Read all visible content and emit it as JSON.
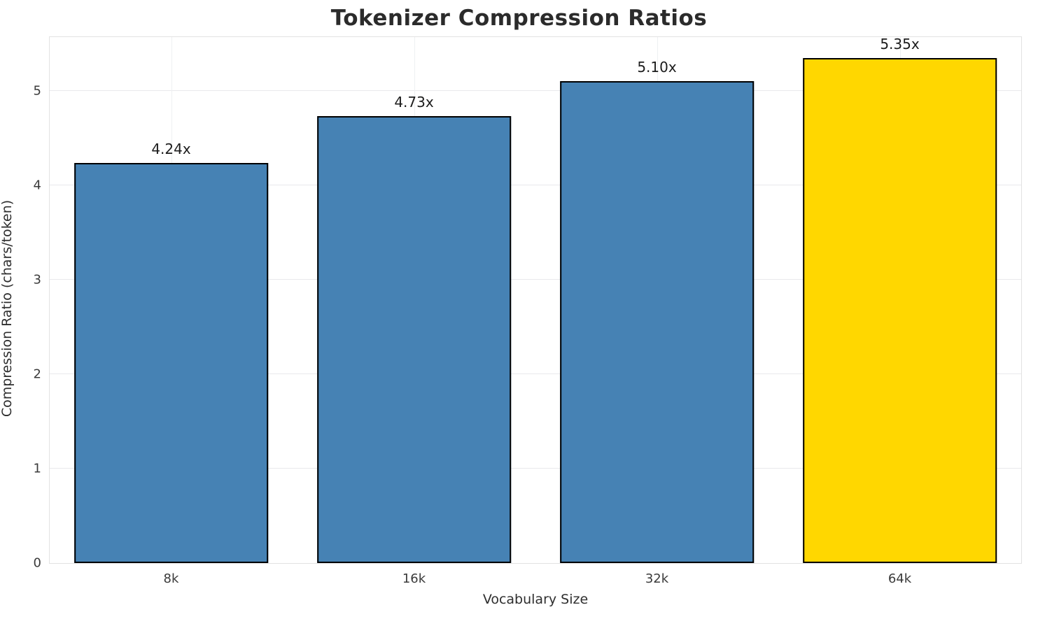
{
  "chart_data": {
    "type": "bar",
    "title": "Tokenizer Compression Ratios",
    "categories": [
      "8k",
      "16k",
      "32k",
      "64k"
    ],
    "values": [
      4.24,
      4.73,
      5.1,
      5.35
    ],
    "bar_labels": [
      "4.24x",
      "4.73x",
      "5.10x",
      "5.35x"
    ],
    "bar_colors": [
      "#4682b4",
      "#4682b4",
      "#4682b4",
      "#ffd700"
    ],
    "edge_color": "#000000",
    "xlabel": "Vocabulary Size",
    "ylabel": "Compression Ratio (chars/token)",
    "ylim": [
      0,
      5.57
    ],
    "yticks": [
      0,
      1,
      2,
      3,
      4,
      5
    ],
    "grid": true,
    "legend": "none",
    "bar_width_fraction": 0.8
  }
}
